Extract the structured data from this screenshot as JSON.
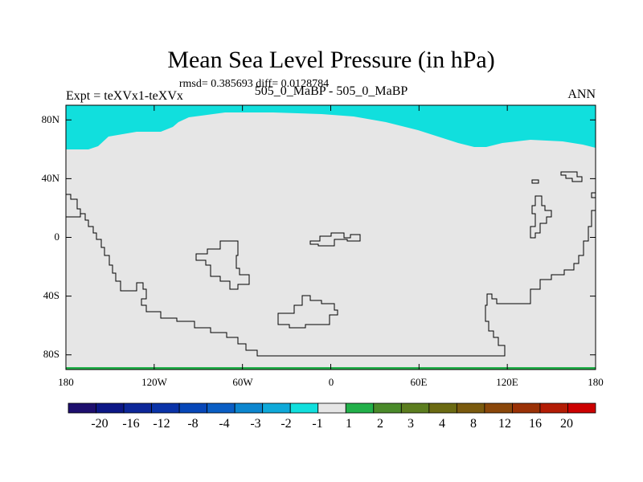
{
  "chart_data": {
    "type": "heatmap",
    "title": "Mean Sea Level Pressure (in hPa)",
    "stats_line": "rmsd= 0.385693 diff= 0.0128784",
    "left_label": "Expt = teXVx1-teXVx",
    "center_label": "505_0_MaBP - 505_0_MaBP",
    "right_label": "ANN",
    "x_ticks": [
      "180",
      "120W",
      "60W",
      "0",
      "60E",
      "120E",
      "180"
    ],
    "y_ticks": [
      "80N",
      "40N",
      "0",
      "40S",
      "80S"
    ],
    "x_range": [
      -180,
      180
    ],
    "y_range": [
      -90,
      90
    ],
    "field_description": {
      "dominant_bin": "-1 to 1",
      "northern_band_bin": "-2 to -1",
      "southern_edge_bin": "1 to 2"
    },
    "colorbar": {
      "labels": [
        "-20",
        "-16",
        "-12",
        "-8",
        "-4",
        "-3",
        "-2",
        "-1",
        "1",
        "2",
        "3",
        "4",
        "8",
        "12",
        "16",
        "20"
      ],
      "colors": [
        "#1e0f6e",
        "#0c1786",
        "#0d2799",
        "#0a33a8",
        "#0747b8",
        "#0a5ec4",
        "#0c86cf",
        "#0fa9d9",
        "#11dfdd",
        "#e6e6e6",
        "#22b04a",
        "#4a8a2a",
        "#5c7d1f",
        "#6b6a12",
        "#7a5a0e",
        "#8a470a",
        "#9a3106",
        "#b31c05",
        "#cc0000"
      ]
    },
    "colors": {
      "land_field": "#e6e6e6",
      "north_band": "#11dfdd",
      "south_band": "#22b04a",
      "coastline": "#000000"
    }
  }
}
